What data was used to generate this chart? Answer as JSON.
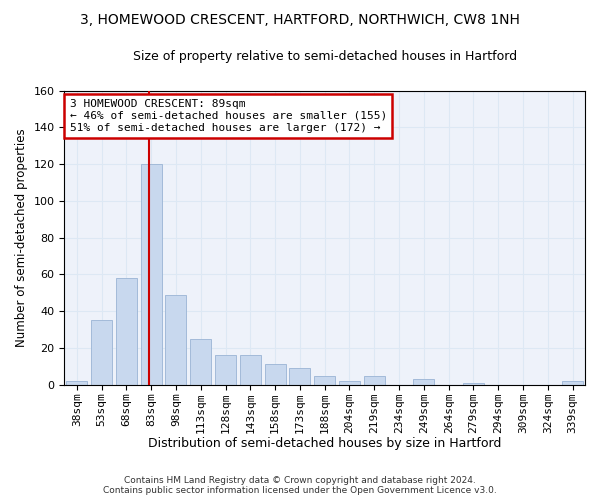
{
  "title1": "3, HOMEWOOD CRESCENT, HARTFORD, NORTHWICH, CW8 1NH",
  "title2": "Size of property relative to semi-detached houses in Hartford",
  "xlabel": "Distribution of semi-detached houses by size in Hartford",
  "ylabel": "Number of semi-detached properties",
  "footer1": "Contains HM Land Registry data © Crown copyright and database right 2024.",
  "footer2": "Contains public sector information licensed under the Open Government Licence v3.0.",
  "categories": [
    "38sqm",
    "53sqm",
    "68sqm",
    "83sqm",
    "98sqm",
    "113sqm",
    "128sqm",
    "143sqm",
    "158sqm",
    "173sqm",
    "188sqm",
    "204sqm",
    "219sqm",
    "234sqm",
    "249sqm",
    "264sqm",
    "279sqm",
    "294sqm",
    "309sqm",
    "324sqm",
    "339sqm"
  ],
  "values": [
    2,
    35,
    58,
    120,
    49,
    25,
    16,
    16,
    11,
    9,
    5,
    2,
    5,
    0,
    3,
    0,
    1,
    0,
    0,
    0,
    2
  ],
  "bar_color": "#c8d8ee",
  "bar_edge_color": "#9ab4d4",
  "vline_color": "#cc0000",
  "vline_x": 2.9,
  "annotation_text": "3 HOMEWOOD CRESCENT: 89sqm\n← 46% of semi-detached houses are smaller (155)\n51% of semi-detached houses are larger (172) →",
  "annotation_box_color": "#ffffff",
  "annotation_box_edge": "#cc0000",
  "ylim": [
    0,
    160
  ],
  "yticks": [
    0,
    20,
    40,
    60,
    80,
    100,
    120,
    140,
    160
  ],
  "grid_color": "#dde8f4",
  "background_color": "#eef2fa",
  "title1_fontsize": 10,
  "title2_fontsize": 9,
  "xlabel_fontsize": 9,
  "ylabel_fontsize": 8.5,
  "tick_fontsize": 8,
  "footer_fontsize": 6.5
}
